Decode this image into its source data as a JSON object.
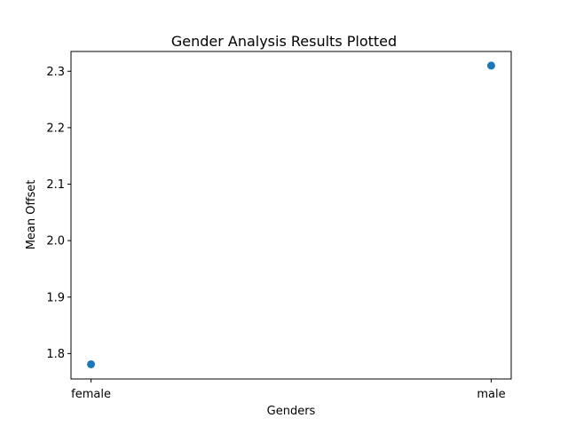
{
  "chart_data": {
    "type": "scatter",
    "title": "Gender Analysis Results Plotted",
    "xlabel": "Genders",
    "ylabel": "Mean Offset",
    "categories": [
      "female",
      "male"
    ],
    "values": [
      1.781,
      2.31
    ],
    "ylim": [
      1.755,
      2.335
    ],
    "yticks": [
      1.8,
      1.9,
      2.0,
      2.1,
      2.2,
      2.3
    ],
    "ytick_labels": [
      "1.8",
      "1.9",
      "2.0",
      "2.1",
      "2.2",
      "2.3"
    ],
    "grid": false,
    "marker_color": "#1f77b4"
  }
}
